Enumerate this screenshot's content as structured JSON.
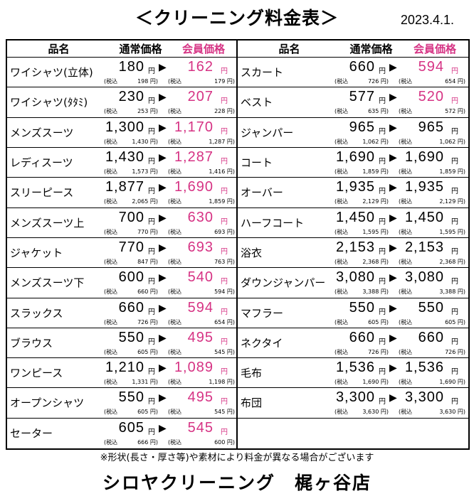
{
  "title": "＜クリーニング料金表＞",
  "date": "2023.4.1.",
  "header": {
    "name": "品名",
    "regular": "通常価格",
    "member": "会員価格"
  },
  "yen": "円",
  "arrow": "▶",
  "tax_label": "(税込",
  "left": [
    {
      "name": "ワイシャツ(立体)",
      "reg": "180",
      "mem": "162",
      "reg_tax": "198 円)",
      "mem_tax": "179 円)"
    },
    {
      "name": "ワイシャツ(ﾀﾀﾐ)",
      "reg": "230",
      "mem": "207",
      "reg_tax": "253 円)",
      "mem_tax": "228 円)"
    },
    {
      "name": "メンズスーツ",
      "reg": "1,300",
      "mem": "1,170",
      "reg_tax": "1,430 円)",
      "mem_tax": "1,287 円)"
    },
    {
      "name": "レディスーツ",
      "reg": "1,430",
      "mem": "1,287",
      "reg_tax": "1,573 円)",
      "mem_tax": "1,416 円)"
    },
    {
      "name": "スリーピース",
      "reg": "1,877",
      "mem": "1,690",
      "reg_tax": "2,065 円)",
      "mem_tax": "1,859 円)"
    },
    {
      "name": "メンズスーツ上",
      "reg": "700",
      "mem": "630",
      "reg_tax": "770 円)",
      "mem_tax": "693 円)"
    },
    {
      "name": "ジャケット",
      "reg": "770",
      "mem": "693",
      "reg_tax": "847 円)",
      "mem_tax": "763 円)"
    },
    {
      "name": "メンズスーツ下",
      "reg": "600",
      "mem": "540",
      "reg_tax": "660 円)",
      "mem_tax": "594 円)"
    },
    {
      "name": "スラックス",
      "reg": "660",
      "mem": "594",
      "reg_tax": "726 円)",
      "mem_tax": "654 円)"
    },
    {
      "name": "ブラウス",
      "reg": "550",
      "mem": "495",
      "reg_tax": "605 円)",
      "mem_tax": "545 円)"
    },
    {
      "name": "ワンピース",
      "reg": "1,210",
      "mem": "1,089",
      "reg_tax": "1,331 円)",
      "mem_tax": "1,198 円)"
    },
    {
      "name": "オープンシャツ",
      "reg": "550",
      "mem": "495",
      "reg_tax": "605 円)",
      "mem_tax": "545 円)"
    },
    {
      "name": "セーター",
      "reg": "605",
      "mem": "545",
      "reg_tax": "666 円)",
      "mem_tax": "600 円)"
    }
  ],
  "right": [
    {
      "name": "スカート",
      "reg": "660",
      "mem": "594",
      "reg_tax": "726 円)",
      "mem_tax": "654 円)"
    },
    {
      "name": "ベスト",
      "reg": "577",
      "mem": "520",
      "reg_tax": "635 円)",
      "mem_tax": "572 円)"
    },
    {
      "name": "ジャンパー",
      "reg": "965",
      "mem": "965",
      "reg_tax": "1,062 円)",
      "mem_tax": "1,062 円)"
    },
    {
      "name": "コート",
      "reg": "1,690",
      "mem": "1,690",
      "reg_tax": "1,859 円)",
      "mem_tax": "1,859 円)"
    },
    {
      "name": "オーバー",
      "reg": "1,935",
      "mem": "1,935",
      "reg_tax": "2,129 円)",
      "mem_tax": "2,129 円)"
    },
    {
      "name": "ハーフコート",
      "reg": "1,450",
      "mem": "1,450",
      "reg_tax": "1,595 円)",
      "mem_tax": "1,595 円)"
    },
    {
      "name": "浴衣",
      "reg": "2,153",
      "mem": "2,153",
      "reg_tax": "2,368 円)",
      "mem_tax": "2,368 円)"
    },
    {
      "name": "ダウンジャンパー",
      "reg": "3,080",
      "mem": "3,080",
      "reg_tax": "3,388 円)",
      "mem_tax": "3,388 円)"
    },
    {
      "name": "マフラー",
      "reg": "550",
      "mem": "550",
      "reg_tax": "605 円)",
      "mem_tax": "605 円)"
    },
    {
      "name": "ネクタイ",
      "reg": "660",
      "mem": "660",
      "reg_tax": "726 円)",
      "mem_tax": "726 円)"
    },
    {
      "name": "毛布",
      "reg": "1,536",
      "mem": "1,536",
      "reg_tax": "1,690 円)",
      "mem_tax": "1,690 円)"
    },
    {
      "name": "布団",
      "reg": "3,300",
      "mem": "3,300",
      "reg_tax": "3,630 円)",
      "mem_tax": "3,630 円)"
    }
  ],
  "note": "※形状(長さ・厚さ等)や素材により料金が異なる場合がございます",
  "shop": "シロヤクリーニング　梶ヶ谷店",
  "colors": {
    "member_accent": "#d63384",
    "right_member_text": "#000000"
  }
}
